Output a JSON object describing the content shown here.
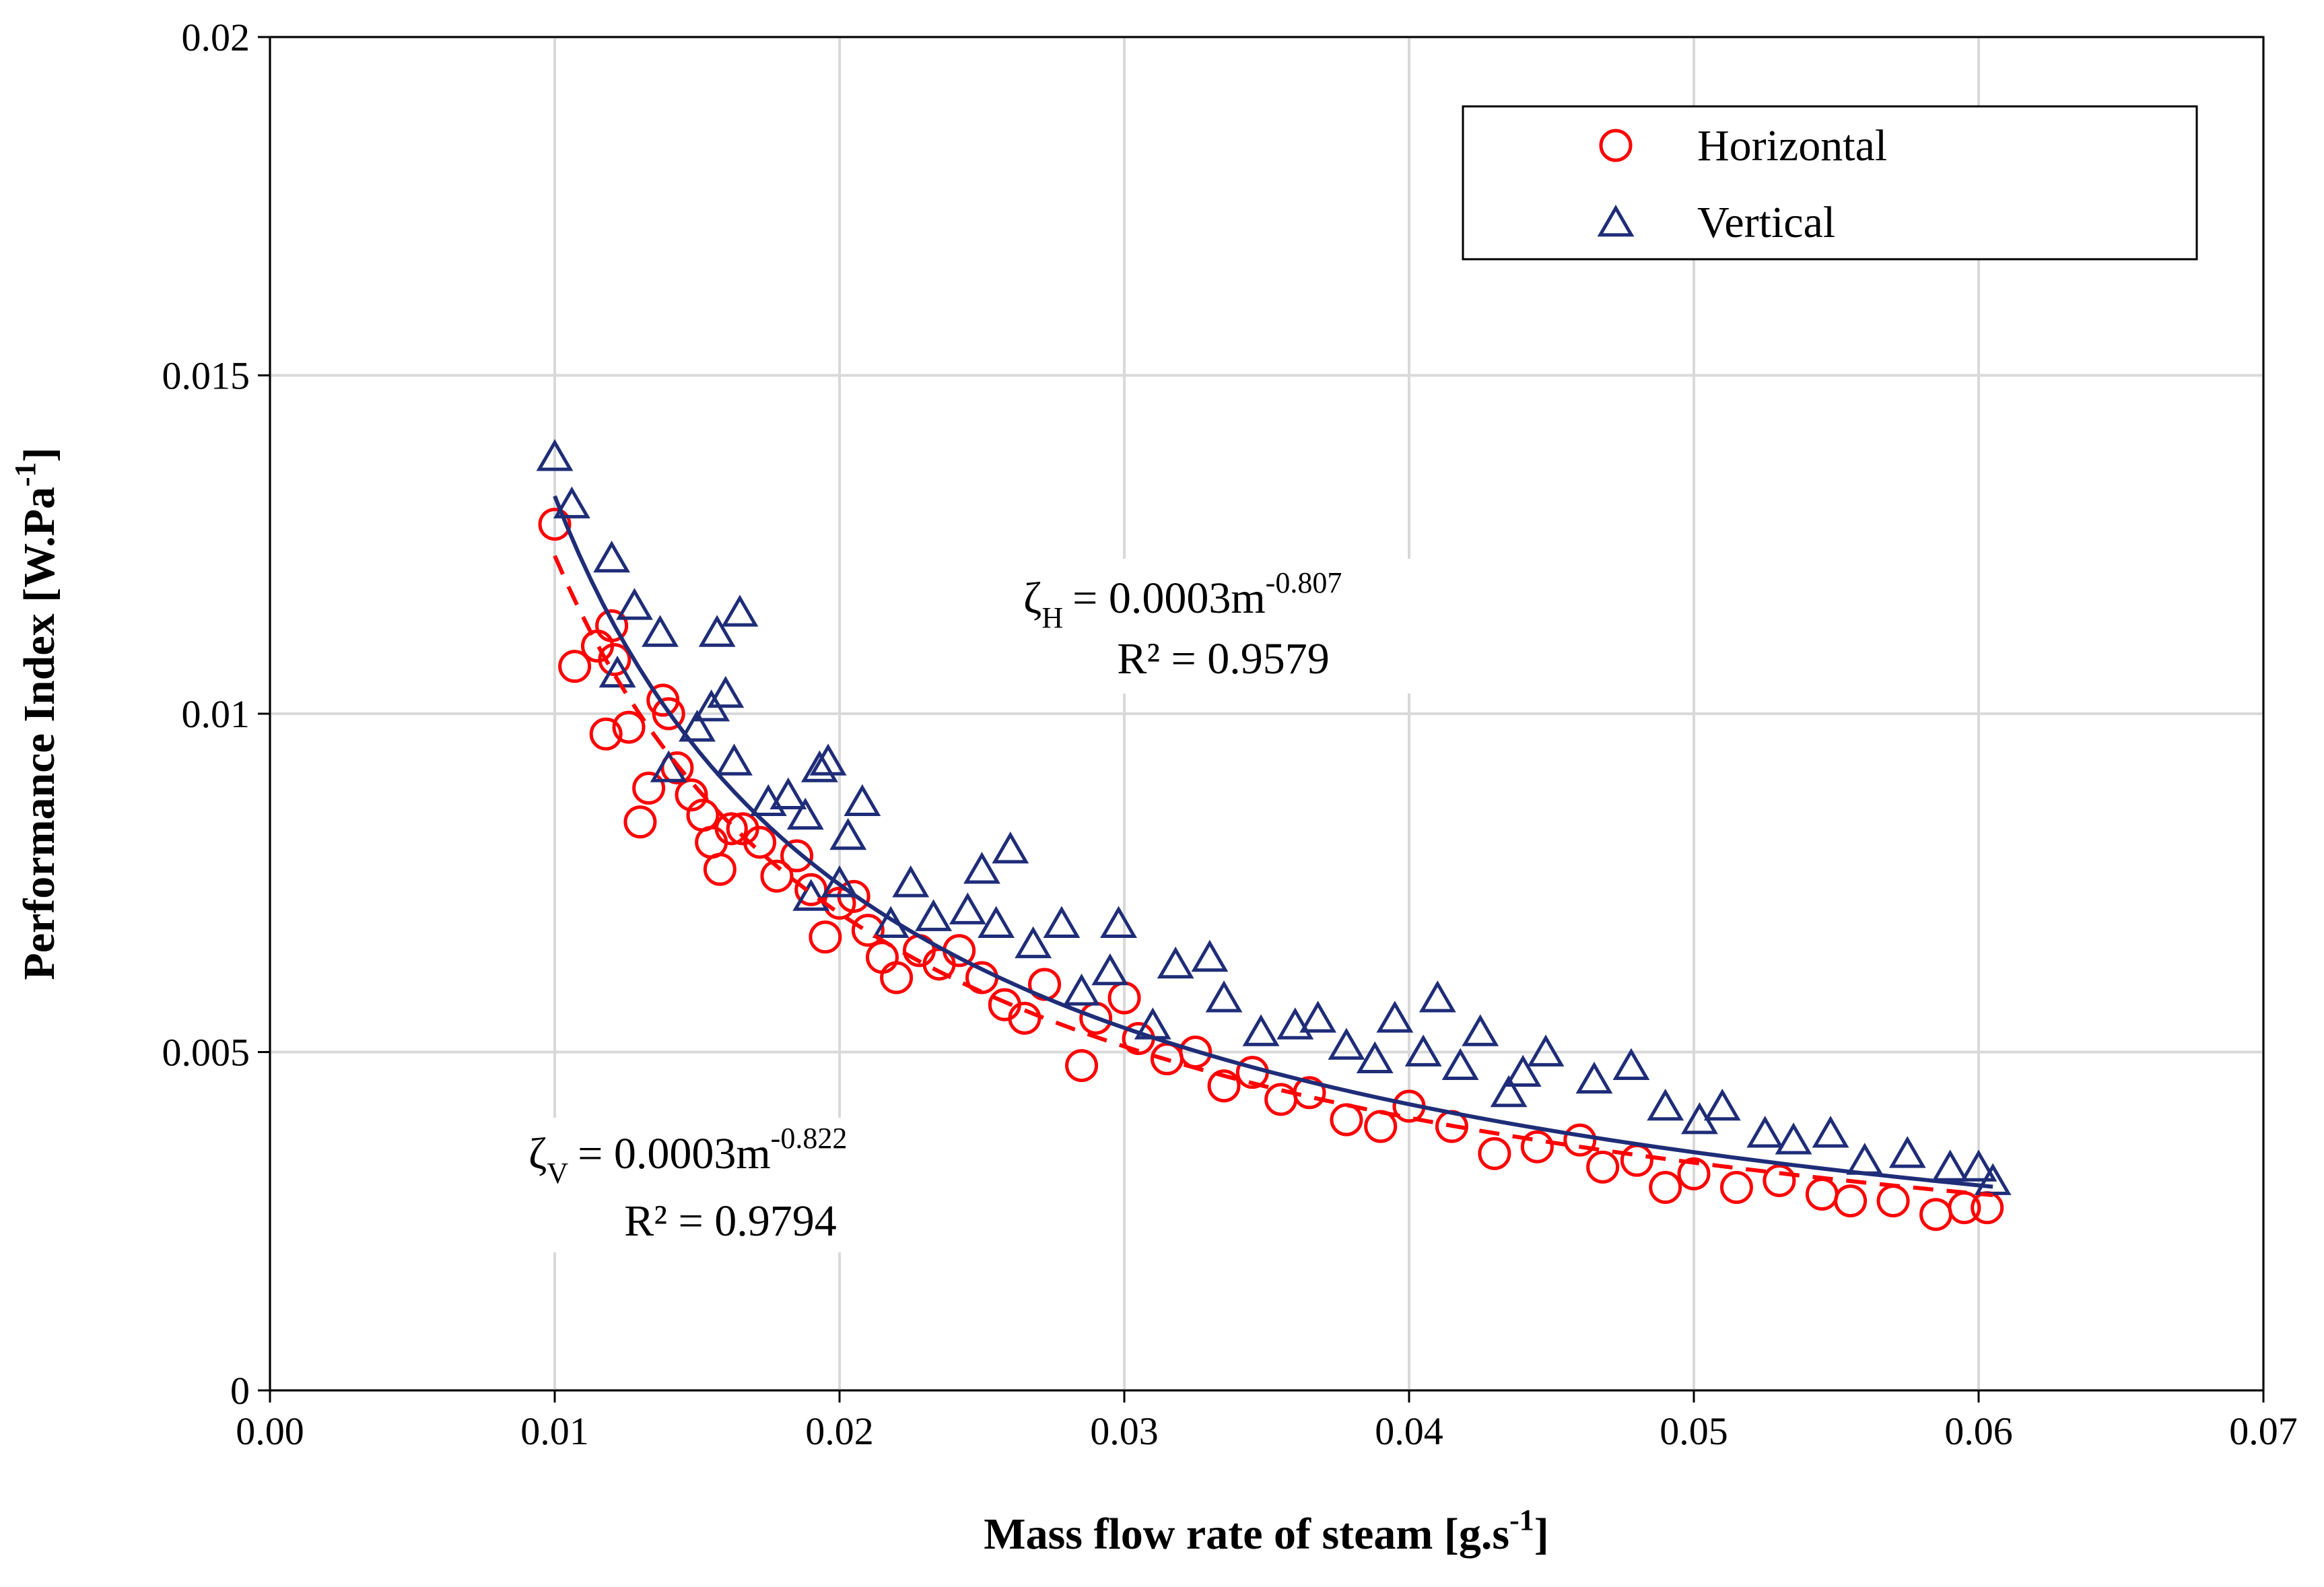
{
  "chart_data": {
    "type": "scatter",
    "xlabel": {
      "text": "Mass flow rate of steam [g.s",
      "superscript": "-1",
      "suffix": "]"
    },
    "ylabel": {
      "text": "Performance Index [W.Pa",
      "superscript": "-1",
      "suffix": "]"
    },
    "xlim": [
      0,
      0.07
    ],
    "ylim": [
      0,
      0.02
    ],
    "xticks": [
      {
        "value": 0,
        "label": "0.00"
      },
      0.01,
      0.02,
      0.03,
      0.04,
      0.05,
      0.06,
      0.07
    ],
    "yticks": [
      0,
      0.005,
      0.01,
      0.015,
      0.02
    ],
    "grid": true,
    "legend": "top-right",
    "series": [
      {
        "name": "Horizontal",
        "color": "#ff0000",
        "marker": "circle",
        "x": [
          0.01,
          0.0107,
          0.0115,
          0.0118,
          0.012,
          0.0121,
          0.0126,
          0.013,
          0.0133,
          0.0138,
          0.014,
          0.0143,
          0.0148,
          0.0152,
          0.0155,
          0.0158,
          0.0162,
          0.0166,
          0.0172,
          0.0178,
          0.0185,
          0.019,
          0.0195,
          0.02,
          0.0205,
          0.021,
          0.0215,
          0.022,
          0.0228,
          0.0235,
          0.0242,
          0.025,
          0.0258,
          0.0265,
          0.0272,
          0.0285,
          0.029,
          0.03,
          0.0305,
          0.0315,
          0.0325,
          0.0335,
          0.0345,
          0.0355,
          0.0365,
          0.0378,
          0.039,
          0.04,
          0.0415,
          0.043,
          0.0445,
          0.046,
          0.0468,
          0.048,
          0.049,
          0.05,
          0.0515,
          0.053,
          0.0545,
          0.0555,
          0.057,
          0.0585,
          0.0595,
          0.0603
        ],
        "values": [
          0.0128,
          0.0107,
          0.011,
          0.0097,
          0.0113,
          0.0108,
          0.0098,
          0.0084,
          0.0089,
          0.0102,
          0.01,
          0.0092,
          0.0088,
          0.0085,
          0.0081,
          0.0077,
          0.0083,
          0.0083,
          0.0081,
          0.0076,
          0.0079,
          0.0074,
          0.0067,
          0.0072,
          0.0073,
          0.0068,
          0.0064,
          0.0061,
          0.0065,
          0.0063,
          0.0065,
          0.0061,
          0.0057,
          0.0055,
          0.006,
          0.0048,
          0.0055,
          0.0058,
          0.0052,
          0.0049,
          0.005,
          0.0045,
          0.0047,
          0.0043,
          0.0044,
          0.004,
          0.0039,
          0.0042,
          0.0039,
          0.0035,
          0.0036,
          0.0037,
          0.0033,
          0.0034,
          0.003,
          0.0032,
          0.003,
          0.0031,
          0.0029,
          0.0028,
          0.0028,
          0.0026,
          0.0027,
          0.0027
        ],
        "fit": {
          "coefficient": 0.0003,
          "exponent": -0.807,
          "xrange": [
            0.01,
            0.0605
          ],
          "line_style": "dashed"
        }
      },
      {
        "name": "Vertical",
        "color": "#1f2d78",
        "marker": "triangle",
        "x": [
          0.01,
          0.0106,
          0.012,
          0.0122,
          0.0128,
          0.0137,
          0.014,
          0.015,
          0.0155,
          0.0157,
          0.016,
          0.0163,
          0.0165,
          0.0175,
          0.0182,
          0.0188,
          0.019,
          0.0193,
          0.0196,
          0.02,
          0.0203,
          0.0208,
          0.0218,
          0.0225,
          0.0233,
          0.0245,
          0.025,
          0.0255,
          0.026,
          0.0268,
          0.0278,
          0.0285,
          0.0295,
          0.0298,
          0.031,
          0.0318,
          0.033,
          0.0335,
          0.0348,
          0.036,
          0.0368,
          0.0378,
          0.0388,
          0.0395,
          0.0405,
          0.041,
          0.0418,
          0.0425,
          0.0435,
          0.044,
          0.0448,
          0.0465,
          0.0478,
          0.049,
          0.0502,
          0.051,
          0.0525,
          0.0535,
          0.0548,
          0.056,
          0.0575,
          0.059,
          0.06,
          0.0605
        ],
        "values": [
          0.0138,
          0.0131,
          0.0123,
          0.0106,
          0.0116,
          0.0112,
          0.0092,
          0.0098,
          0.0101,
          0.0112,
          0.0103,
          0.0093,
          0.0115,
          0.0087,
          0.0088,
          0.0085,
          0.0073,
          0.0092,
          0.0093,
          0.0075,
          0.0082,
          0.0087,
          0.0069,
          0.0075,
          0.007,
          0.0071,
          0.0077,
          0.0069,
          0.008,
          0.0066,
          0.0069,
          0.0059,
          0.0062,
          0.0069,
          0.0054,
          0.0063,
          0.0064,
          0.0058,
          0.0053,
          0.0054,
          0.0055,
          0.0051,
          0.0049,
          0.0055,
          0.005,
          0.0058,
          0.0048,
          0.0053,
          0.0044,
          0.0047,
          0.005,
          0.0046,
          0.0048,
          0.0042,
          0.004,
          0.0042,
          0.0038,
          0.0037,
          0.0038,
          0.0034,
          0.0035,
          0.0033,
          0.0033,
          0.0031
        ],
        "fit": {
          "coefficient": 0.0003,
          "exponent": -0.822,
          "xrange": [
            0.01,
            0.0605
          ],
          "line_style": "solid"
        }
      }
    ],
    "annotations": [
      {
        "symbol": "ζ",
        "subscript": "H",
        "equation": "= 0.0003m",
        "exponent": "-0.807",
        "r_squared": "R² = 0.9579"
      },
      {
        "symbol": "ζ",
        "subscript": "V",
        "equation": "= 0.0003m",
        "exponent": "-0.822",
        "r_squared": "R² = 0.9794"
      }
    ]
  }
}
